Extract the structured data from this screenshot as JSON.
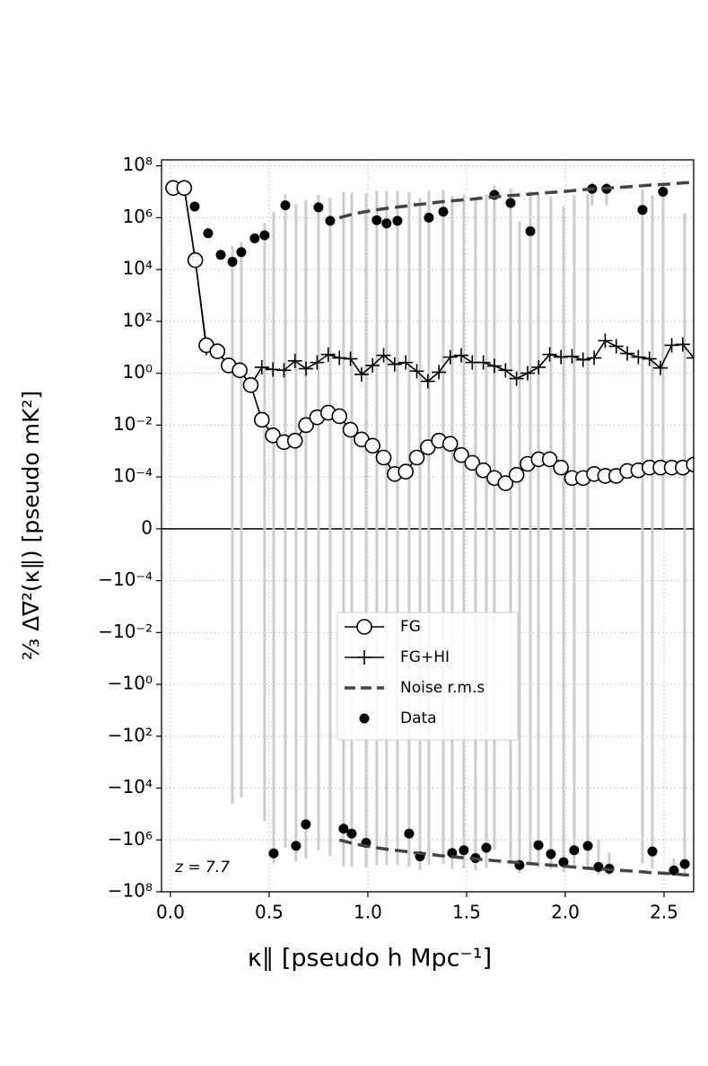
{
  "chart_data": {
    "type": "line",
    "xlabel": "κ∥  [pseudo h Mpc⁻¹]",
    "ylabel": "⅔ Δ∇²(κ∥) [pseudo mK²]",
    "annotation": "z =  7.7",
    "yscale": "symlog",
    "linthresh": 0.0001,
    "linscale": 2,
    "xlim": [
      -0.045,
      2.65
    ],
    "ylim": [
      -100000000.0,
      170000000.0
    ],
    "xticks": [
      {
        "value": 0,
        "label": "0.0"
      },
      0.5,
      {
        "value": 1,
        "label": "1.0"
      },
      1.5,
      {
        "value": 2,
        "label": "2.0"
      },
      2.5
    ],
    "yticks": [
      {
        "value": 100000000.0,
        "label": "10⁸"
      },
      {
        "value": 1000000.0,
        "label": "10⁶"
      },
      {
        "value": 10000.0,
        "label": "10⁴"
      },
      {
        "value": 100,
        "label": "10²"
      },
      {
        "value": 1,
        "label": "10⁰"
      },
      {
        "value": 0.01,
        "label": "10⁻²"
      },
      {
        "value": 0.0001,
        "label": "10⁻⁴"
      },
      0,
      {
        "value": -0.0001,
        "label": "−10⁻⁴"
      },
      {
        "value": -0.01,
        "label": "−10⁻²"
      },
      {
        "value": -1,
        "label": "−10⁰"
      },
      {
        "value": -100,
        "label": "−10²"
      },
      {
        "value": -10000.0,
        "label": "−10⁴"
      },
      {
        "value": -1000000.0,
        "label": "−10⁶"
      },
      {
        "value": -100000000.0,
        "label": "−10⁸"
      }
    ],
    "grid": true,
    "legend": "center",
    "x": [
      0.014,
      0.07,
      0.126,
      0.182,
      0.238,
      0.295,
      0.351,
      0.407,
      0.463,
      0.519,
      0.575,
      0.631,
      0.687,
      0.743,
      0.799,
      0.856,
      0.912,
      0.968,
      1.024,
      1.08,
      1.136,
      1.192,
      1.248,
      1.304,
      1.36,
      1.417,
      1.473,
      1.529,
      1.585,
      1.641,
      1.697,
      1.753,
      1.809,
      1.865,
      1.921,
      1.978,
      2.034,
      2.09,
      2.146,
      2.202,
      2.258,
      2.314,
      2.37,
      2.426,
      2.482,
      2.539,
      2.595,
      2.651
    ],
    "series": [
      {
        "name": "FG",
        "color": "#000000",
        "marker": "circle",
        "values": [
          14000000.0,
          14000000.0,
          23000.0,
          12,
          7,
          2,
          1.3,
          0.35,
          0.016,
          0.004,
          0.0022,
          0.0025,
          0.01,
          0.02,
          0.03,
          0.022,
          0.0066,
          0.0028,
          0.0016,
          0.00056,
          0.00013,
          0.00016,
          0.00056,
          0.0014,
          0.0025,
          0.0019,
          0.0007,
          0.00035,
          0.00018,
          9.8e-05,
          8.8e-05,
          0.00012,
          0.00032,
          0.00048,
          0.00048,
          0.00023,
          9.8e-05,
          9.8e-05,
          0.00013,
          0.00011,
          0.00011,
          0.00017,
          0.00018,
          0.00023,
          0.00023,
          0.00023,
          0.00023,
          0.0003
        ]
      },
      {
        "name": "FG+HI",
        "color": "#000000",
        "marker": "plus",
        "values": [
          14000000.0,
          14000000.0,
          23000.0,
          9.3,
          7,
          2,
          1.3,
          0.35,
          1.7,
          1.4,
          1.3,
          3,
          1.5,
          2.6,
          5.3,
          3.9,
          3.6,
          0.9,
          2,
          4.9,
          2.2,
          2.6,
          1.2,
          0.49,
          1.1,
          4.2,
          4.9,
          2.6,
          2.6,
          1.9,
          1.3,
          0.62,
          1,
          1.7,
          5.3,
          4.2,
          4.5,
          3.3,
          3.9,
          18,
          11,
          5.8,
          4.2,
          3.6,
          1.6,
          12,
          13,
          3.9
        ]
      },
      {
        "name": "Noise r.m.s",
        "color": "#444444",
        "linestyle": "dashed",
        "mirrored": true,
        "values": [
          null,
          null,
          null,
          null,
          null,
          null,
          null,
          null,
          null,
          null,
          null,
          null,
          null,
          null,
          null,
          1000000.0,
          1300000.0,
          1600000.0,
          1900000.0,
          2200000.0,
          2500000.0,
          2800000.0,
          3200000.0,
          3500000.0,
          4000000.0,
          4400000.0,
          4800000.0,
          5200000.0,
          5800000.0,
          6300000.0,
          6900000.0,
          7400000.0,
          8000000.0,
          8700000.0,
          9300000.0,
          10000000.0,
          11000000.0,
          12000000.0,
          13000000.0,
          13500000.0,
          14500000.0,
          15500000.0,
          16500000.0,
          18000000.0,
          19000000.0,
          20000000.0,
          22000000.0,
          23000000.0
        ]
      },
      {
        "name": "Data",
        "color": "#000000",
        "marker": "dot",
        "error_color": "#cccccc",
        "x": [
          0.014,
          0.073,
          0.123,
          0.191,
          0.255,
          0.314,
          0.359,
          0.427,
          0.477,
          0.523,
          0.582,
          0.636,
          0.686,
          0.75,
          0.809,
          0.877,
          0.918,
          0.991,
          1.045,
          1.095,
          1.15,
          1.209,
          1.264,
          1.309,
          1.382,
          1.427,
          1.486,
          1.545,
          1.6,
          1.641,
          1.723,
          1.768,
          1.823,
          1.864,
          1.927,
          1.991,
          2.045,
          2.114,
          2.136,
          2.168,
          2.209,
          2.223,
          2.391,
          2.441,
          2.495,
          2.55,
          2.605
        ],
        "values": [
          15000000.0,
          14000000.0,
          2700000.0,
          250000.0,
          37000.0,
          20000.0,
          47000.0,
          160000.0,
          210000.0,
          -3300000.0,
          3000000.0,
          -1700000.0,
          -250000.0,
          2500000.0,
          760000.0,
          -370000.0,
          -570000.0,
          -1300000.0,
          800000.0,
          600000.0,
          760000.0,
          -570000.0,
          -4300000.0,
          1000000.0,
          1700000.0,
          -3200000.0,
          -2500000.0,
          -5000000.0,
          -2000000.0,
          7600000.0,
          3700000.0,
          -9300000.0,
          300000.0,
          -1600000.0,
          -3500000.0,
          -7200000.0,
          -2500000.0,
          -1700000.0,
          13000000.0,
          -11000000.0,
          13000000.0,
          -13000000.0,
          2000000.0,
          -2800000.0,
          10000000.0,
          -15000000.0,
          -8500000.0
        ],
        "errors": [
          0,
          0,
          0,
          0,
          0,
          60000.0,
          70000.0,
          0,
          400000.0,
          5000000.0,
          5000000.0,
          5000000.0,
          5000000.0,
          5000000.0,
          5000000.0,
          10000000.0,
          10000000.0,
          10000000.0,
          10000000.0,
          10000000.0,
          10000000.0,
          10000000.0,
          10000000.0,
          10000000.0,
          10000000.0,
          10000000.0,
          10000000.0,
          10000000.0,
          10000000.0,
          10000000.0,
          10000000.0,
          10000000.0,
          10000000.0,
          10000000.0,
          10000000.0,
          10000000.0,
          10000000.0,
          10000000.0,
          10000000.0,
          10000000.0,
          10000000.0,
          10000000.0,
          10000000.0,
          10000000.0,
          10000000.0,
          10000000.0,
          10000000.0
        ]
      }
    ]
  }
}
